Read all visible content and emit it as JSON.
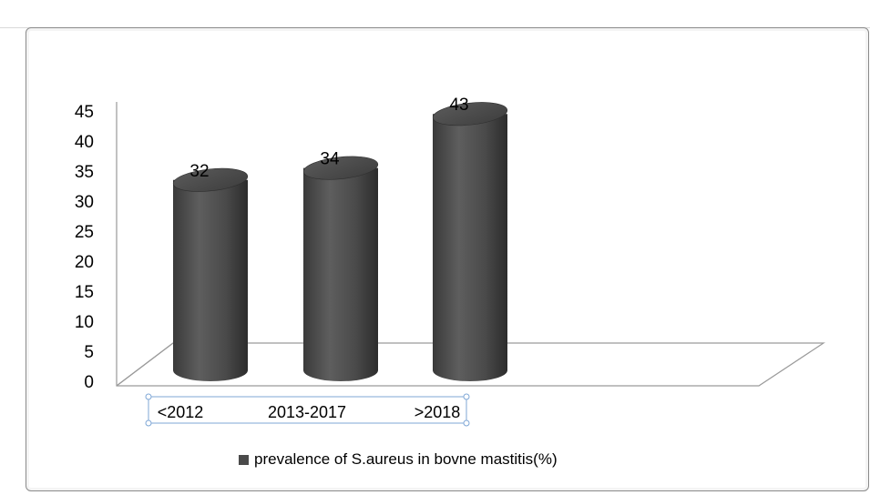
{
  "chart_data": {
    "type": "bar",
    "style": "3d-cylinder",
    "categories": [
      "<2012",
      "2013-2017",
      ">2018"
    ],
    "series": [
      {
        "name": "prevalence  of S.aureus in bovne mastitis(%)",
        "values": [
          32,
          34,
          43
        ],
        "color": "#4a4a4a"
      }
    ],
    "data_labels": [
      "32",
      "34",
      "43"
    ],
    "yticks": [
      "0",
      "5",
      "10",
      "15",
      "20",
      "25",
      "30",
      "35",
      "40",
      "45"
    ],
    "ylim": [
      0,
      45
    ],
    "grid": false,
    "legend_position": "bottom"
  }
}
